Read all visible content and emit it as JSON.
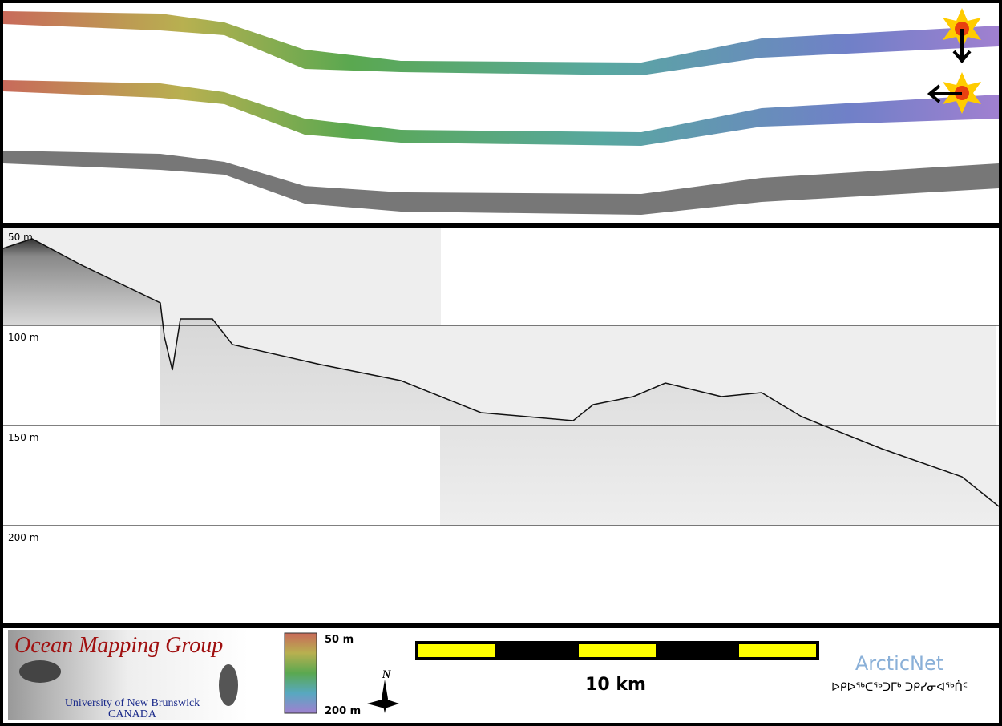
{
  "depth_labels": [
    "50 m",
    "100 m",
    "150 m",
    "200 m"
  ],
  "logo": {
    "title": "Ocean Mapping Group",
    "university": "University of New Brunswick",
    "country": "CANADA"
  },
  "colorbar": {
    "top": "50 m",
    "bottom": "200 m"
  },
  "compass": "N",
  "scale_bar": "10 km",
  "partner": {
    "name": "ArcticNet",
    "syllabics": "ᐅᑭᐅᖅᑕᖅᑐᒥᒃ ᑐᑭᓯᓂᐊᖅᑏᑦ"
  }
}
